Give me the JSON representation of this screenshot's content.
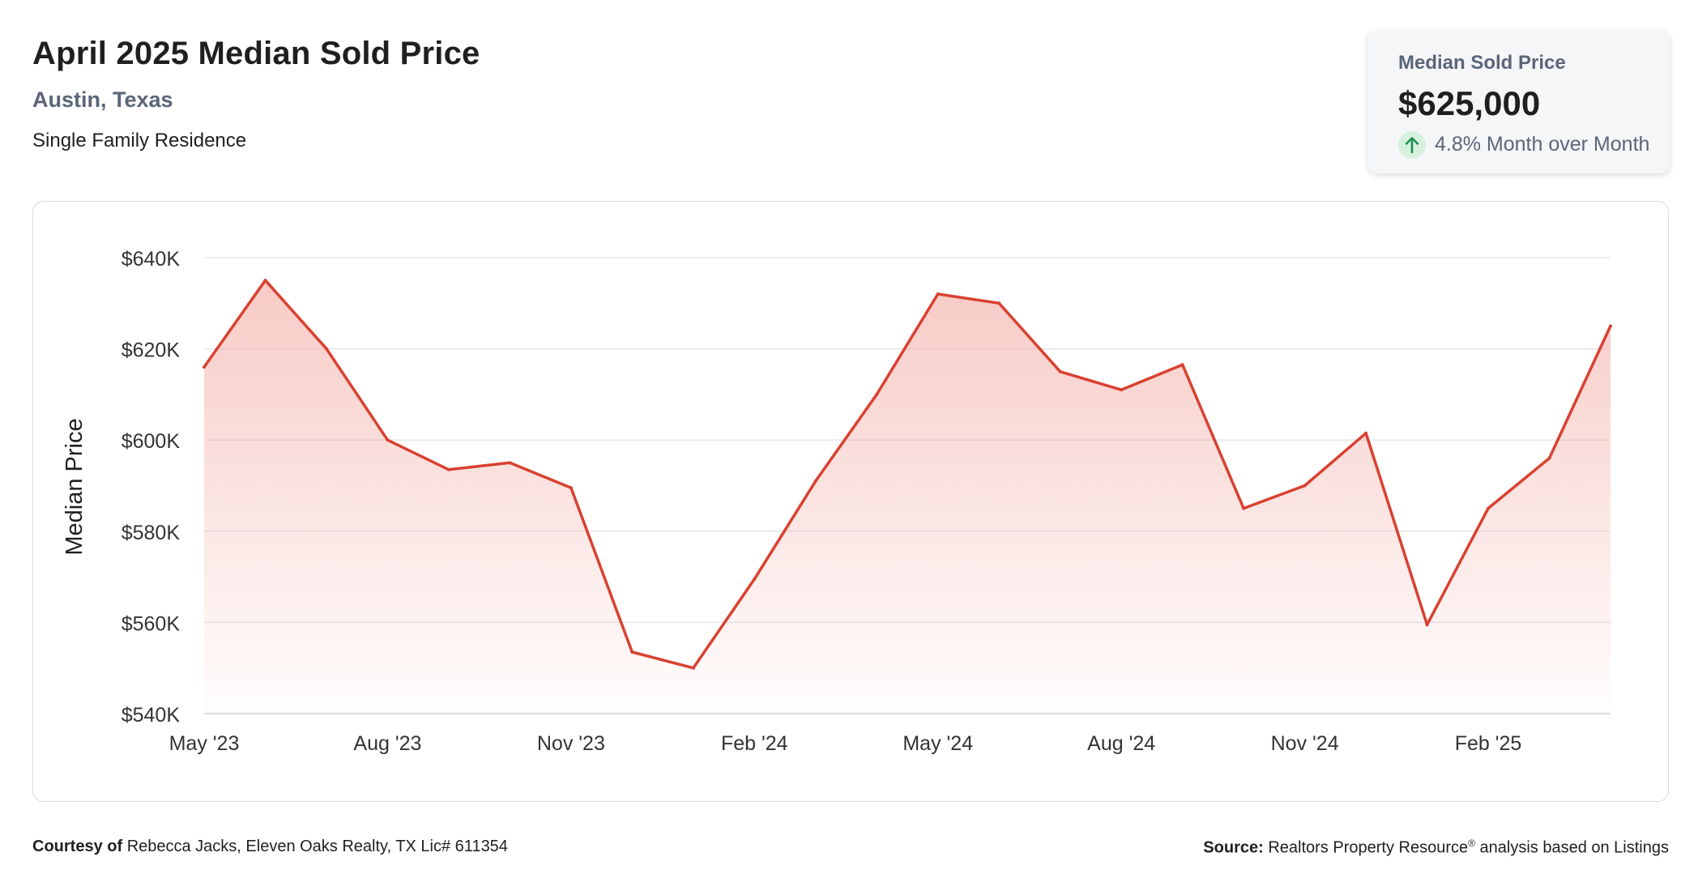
{
  "header": {
    "title": "April 2025 Median Sold Price",
    "location": "Austin, Texas",
    "property_type": "Single Family Residence"
  },
  "stat_card": {
    "label": "Median Sold Price",
    "value": "$625,000",
    "change_text": "4.8% Month over Month",
    "change_icon": "arrow-up-icon",
    "change_color": "#1f8f4e"
  },
  "footer": {
    "courtesy_label": "Courtesy of",
    "courtesy_text": "Rebecca Jacks, Eleven Oaks Realty, TX Lic# 611354",
    "source_label": "Source:",
    "source_name": "Realtors Property Resource",
    "source_mark": "®",
    "source_text": "analysis based on Listings"
  },
  "chart_data": {
    "type": "area",
    "ylabel": "Median Price",
    "ylim": [
      540000,
      640000
    ],
    "yticks": [
      540000,
      560000,
      580000,
      600000,
      620000,
      640000
    ],
    "ytick_labels": [
      "$540K",
      "$560K",
      "$580K",
      "$600K",
      "$620K",
      "$640K"
    ],
    "xtick_labels": [
      "May '23",
      "Aug '23",
      "Nov '23",
      "Feb '24",
      "May '24",
      "Aug '24",
      "Nov '24",
      "Feb '25"
    ],
    "xtick_index": [
      0,
      3,
      6,
      9,
      12,
      15,
      18,
      21
    ],
    "line_color": "#d94130",
    "fill_color": "#f1a097",
    "grid": true,
    "series": [
      {
        "x": [
          "2023-05",
          "2023-06",
          "2023-07",
          "2023-08",
          "2023-09",
          "2023-10",
          "2023-11",
          "2023-12",
          "2024-01",
          "2024-02",
          "2024-03",
          "2024-04",
          "2024-05",
          "2024-06",
          "2024-07",
          "2024-08",
          "2024-09",
          "2024-10",
          "2024-11",
          "2024-12",
          "2025-01",
          "2025-02",
          "2025-03",
          "2025-04"
        ],
        "values": [
          616000,
          635000,
          620000,
          600000,
          593500,
          595000,
          589500,
          553500,
          550000,
          569500,
          591000,
          610000,
          632000,
          630000,
          615000,
          611000,
          616500,
          585000,
          590000,
          601500,
          559500,
          585000,
          596000,
          625000
        ]
      }
    ]
  }
}
